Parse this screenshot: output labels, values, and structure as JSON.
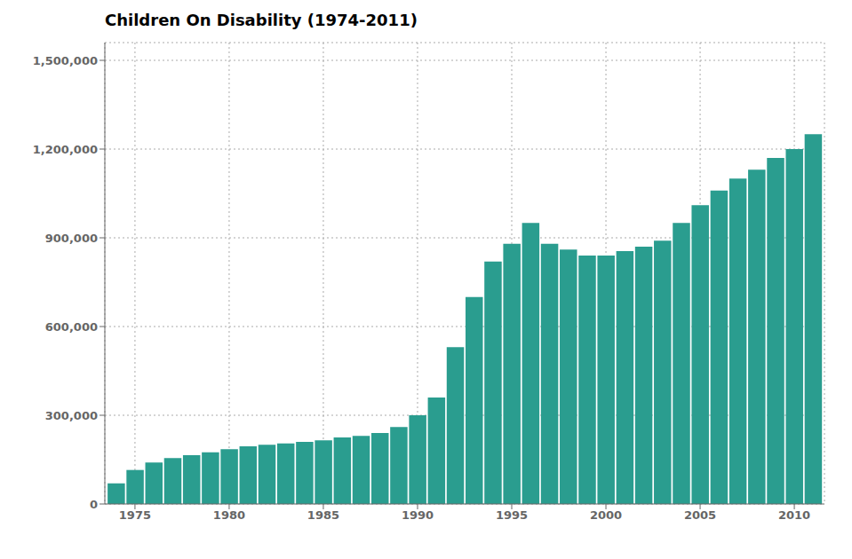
{
  "chart_data": {
    "type": "bar",
    "title": "Children On Disability (1974-2011)",
    "x": [
      1974,
      1975,
      1976,
      1977,
      1978,
      1979,
      1980,
      1981,
      1982,
      1983,
      1984,
      1985,
      1986,
      1987,
      1988,
      1989,
      1990,
      1991,
      1992,
      1993,
      1994,
      1995,
      1996,
      1997,
      1998,
      1999,
      2000,
      2001,
      2002,
      2003,
      2004,
      2005,
      2006,
      2007,
      2008,
      2009,
      2010,
      2011
    ],
    "values": [
      70000,
      115000,
      140000,
      155000,
      165000,
      175000,
      185000,
      195000,
      200000,
      205000,
      210000,
      215000,
      225000,
      230000,
      240000,
      260000,
      300000,
      360000,
      530000,
      700000,
      820000,
      880000,
      950000,
      880000,
      860000,
      840000,
      840000,
      855000,
      870000,
      890000,
      950000,
      1010000,
      1060000,
      1100000,
      1130000,
      1170000,
      1200000,
      1250000
    ],
    "color": "#2a9d8f",
    "xlim": [
      1973.4,
      2011.6
    ],
    "xticks": [
      1975,
      1980,
      1985,
      1990,
      1995,
      2000,
      2005,
      2010
    ],
    "ylim": [
      0,
      1560000
    ],
    "yticks": [
      0,
      {
        "value": 300000,
        "label": "300,000"
      },
      {
        "value": 600000,
        "label": "600,000"
      },
      {
        "value": 900000,
        "label": "900,000"
      },
      {
        "value": 1200000,
        "label": "1,200,000"
      },
      {
        "value": 1500000,
        "label": "1,500,000"
      }
    ],
    "grid": true
  }
}
